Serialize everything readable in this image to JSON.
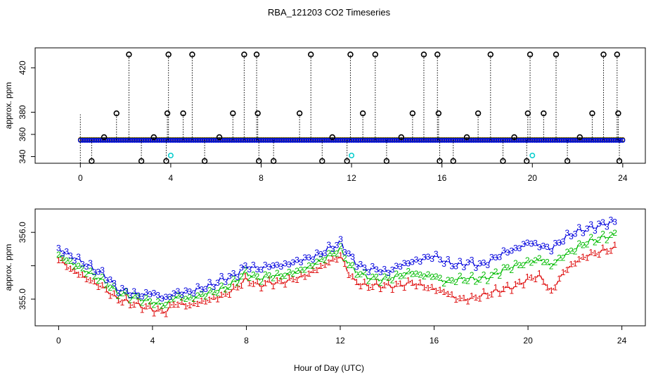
{
  "title": "RBA_121203  CO2 Timeseries",
  "xlabel": "Hour of Day (UTC)",
  "colors": {
    "s1": "#dd0000",
    "s2": "#00bb00",
    "s3": "#0000dd",
    "cyan": "#00cccc",
    "black": "#000000"
  },
  "chart_data": [
    {
      "type": "scatter",
      "panel": "top",
      "ylabel": "approx. ppm",
      "xlim": [
        -2,
        25
      ],
      "ylim": [
        334,
        438
      ],
      "xticks": [
        0,
        4,
        8,
        12,
        16,
        20,
        24
      ],
      "yticks": [
        340,
        380,
        420
      ],
      "yticklabels_extra": [
        360
      ],
      "baseline": 355,
      "baseline_series": [
        {
          "name": "series-1",
          "color": "#dd0000"
        },
        {
          "name": "series-2",
          "color": "#00bb00"
        },
        {
          "name": "series-3",
          "color": "#0000dd"
        }
      ],
      "high_spikes_x": [
        2.15,
        3.9,
        4.95,
        7.25,
        7.8,
        10.2,
        11.95,
        13.05,
        15.2,
        15.8,
        18.15,
        19.9,
        21.05,
        23.15,
        23.75
      ],
      "high_spike_value": 432,
      "mid_spikes_x": [
        1.6,
        3.85,
        4.55,
        6.75,
        7.85,
        9.7,
        12.5,
        14.7,
        15.85,
        17.6,
        19.8,
        20.5,
        22.65,
        23.8
      ],
      "mid_spike_value": 379,
      "low_spikes_x": [
        0.5,
        2.7,
        3.8,
        5.5,
        7.9,
        8.55,
        10.7,
        11.8,
        13.55,
        15.9,
        16.5,
        18.7,
        19.75,
        21.55,
        23.85
      ],
      "low_spike_value": 336,
      "small_bumps_x": [
        1.05,
        3.25,
        6.15,
        11.15,
        14.2,
        17.1,
        19.2,
        22.1
      ],
      "small_bump_value": 357.5,
      "cyan_points": [
        {
          "x": 4.0,
          "y": 341
        },
        {
          "x": 12.0,
          "y": 341
        },
        {
          "x": 20.0,
          "y": 341
        }
      ]
    },
    {
      "type": "line",
      "panel": "bottom",
      "ylabel": "approx. ppm",
      "xlim": [
        -1,
        25
      ],
      "ylim": [
        354.6,
        356.35
      ],
      "xticks": [
        0,
        4,
        8,
        12,
        16,
        20,
        24
      ],
      "yticks": [
        355.0,
        355.5,
        356.0
      ],
      "ytick_labels_shown": [
        "355.0",
        "356.0"
      ],
      "markers": [
        "1",
        "2",
        "3"
      ],
      "series": [
        {
          "name": "1",
          "color": "#dd0000",
          "x": [
            0,
            0.5,
            1,
            1.5,
            2,
            2.5,
            3,
            3.5,
            4,
            4.5,
            5,
            5.5,
            6,
            6.5,
            7,
            7.5,
            8,
            8.5,
            9,
            9.5,
            10,
            10.5,
            11,
            11.5,
            12,
            12.5,
            13,
            13.5,
            14,
            14.5,
            15,
            15.5,
            16,
            16.5,
            17,
            17.5,
            18,
            18.5,
            19,
            19.5,
            20,
            20.5,
            21,
            21.5,
            22,
            22.5,
            23,
            23.5
          ],
          "values": [
            355.6,
            355.45,
            355.35,
            355.25,
            355.15,
            355.0,
            354.95,
            354.9,
            354.85,
            354.8,
            354.95,
            354.9,
            354.95,
            355.0,
            355.05,
            355.15,
            355.3,
            355.2,
            355.25,
            355.25,
            355.3,
            355.35,
            355.45,
            355.55,
            355.65,
            355.3,
            355.2,
            355.2,
            355.2,
            355.2,
            355.25,
            355.2,
            355.15,
            355.1,
            355.0,
            355.0,
            355.05,
            355.1,
            355.15,
            355.2,
            355.3,
            355.35,
            355.1,
            355.4,
            355.55,
            355.65,
            355.7,
            355.75
          ]
        },
        {
          "name": "2",
          "color": "#00bb00",
          "x": [
            0,
            0.5,
            1,
            1.5,
            2,
            2.5,
            3,
            3.5,
            4,
            4.5,
            5,
            5.5,
            6,
            6.5,
            7,
            7.5,
            8,
            8.5,
            9,
            9.5,
            10,
            10.5,
            11,
            11.5,
            12,
            12.5,
            13,
            13.5,
            14,
            14.5,
            15,
            15.5,
            16,
            16.5,
            17,
            17.5,
            18,
            18.5,
            19,
            19.5,
            20,
            20.5,
            21,
            21.5,
            22,
            22.5,
            23,
            23.5
          ],
          "values": [
            355.65,
            355.55,
            355.45,
            355.35,
            355.25,
            355.1,
            355.05,
            355.0,
            354.95,
            354.9,
            355.05,
            355.0,
            355.05,
            355.1,
            355.15,
            355.25,
            355.4,
            355.3,
            355.35,
            355.35,
            355.4,
            355.45,
            355.55,
            355.65,
            355.75,
            355.45,
            355.35,
            355.3,
            355.3,
            355.35,
            355.4,
            355.35,
            355.35,
            355.25,
            355.3,
            355.3,
            355.3,
            355.35,
            355.45,
            355.5,
            355.55,
            355.6,
            355.5,
            355.65,
            355.75,
            355.85,
            355.9,
            355.95
          ]
        },
        {
          "name": "3",
          "color": "#0000dd",
          "x": [
            0,
            0.5,
            1,
            1.5,
            2,
            2.5,
            3,
            3.5,
            4,
            4.5,
            5,
            5.5,
            6,
            6.5,
            7,
            7.5,
            8,
            8.5,
            9,
            9.5,
            10,
            10.5,
            11,
            11.5,
            12,
            12.5,
            13,
            13.5,
            14,
            14.5,
            15,
            15.5,
            16,
            16.5,
            17,
            17.5,
            18,
            18.5,
            19,
            19.5,
            20,
            20.5,
            21,
            21.5,
            22,
            22.5,
            23,
            23.5
          ],
          "values": [
            355.75,
            355.65,
            355.55,
            355.45,
            355.35,
            355.15,
            355.1,
            355.05,
            355.1,
            355.0,
            355.1,
            355.1,
            355.15,
            355.2,
            355.3,
            355.35,
            355.5,
            355.45,
            355.5,
            355.5,
            355.55,
            355.6,
            355.65,
            355.75,
            355.85,
            355.6,
            355.45,
            355.45,
            355.4,
            355.5,
            355.55,
            355.6,
            355.65,
            355.55,
            355.5,
            355.55,
            355.5,
            355.6,
            355.7,
            355.75,
            355.85,
            355.8,
            355.75,
            355.9,
            356.0,
            356.05,
            356.1,
            356.15
          ]
        }
      ]
    }
  ]
}
